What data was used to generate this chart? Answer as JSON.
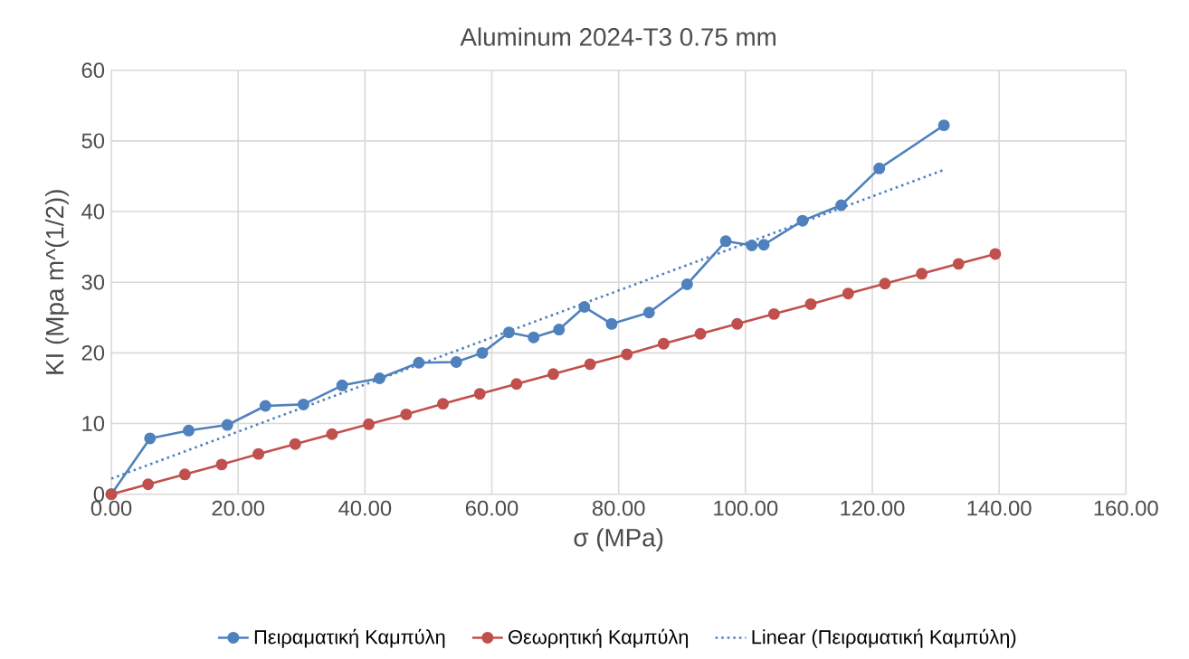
{
  "chart_data": {
    "type": "line",
    "title": "Aluminum 2024-T3 0.75 mm",
    "xlabel": "σ (MPa)",
    "ylabel": "KI (Mpa m^(1/2))",
    "xlim": [
      0,
      160
    ],
    "ylim": [
      0,
      60
    ],
    "xticks": [
      {
        "value": 0,
        "label": "0.00"
      },
      {
        "value": 20,
        "label": "20.00"
      },
      {
        "value": 40,
        "label": "40.00"
      },
      {
        "value": 60,
        "label": "60.00"
      },
      {
        "value": 80,
        "label": "80.00"
      },
      {
        "value": 100,
        "label": "100.00"
      },
      {
        "value": 120,
        "label": "120.00"
      },
      {
        "value": 140,
        "label": "140.00"
      },
      {
        "value": 160,
        "label": "160.00"
      }
    ],
    "yticks": [
      0,
      10,
      20,
      30,
      40,
      50,
      60
    ],
    "grid": true,
    "legend": "bottom",
    "marker": "circle",
    "line_style": "solid",
    "series": [
      {
        "name": "Πειραματική Καμπύλη",
        "color": "#4f81bd",
        "x": [
          0,
          6.1,
          12.2,
          18.3,
          24.3,
          30.3,
          36.4,
          42.3,
          48.5,
          54.4,
          58.5,
          62.7,
          66.6,
          70.6,
          74.6,
          78.9,
          84.8,
          90.8,
          96.9,
          101.0,
          102.9,
          109.0,
          115.1,
          121.1,
          131.3
        ],
        "values": [
          0,
          7.9,
          9.0,
          9.8,
          12.5,
          12.7,
          15.4,
          16.4,
          18.6,
          18.7,
          20.0,
          22.9,
          22.2,
          23.3,
          26.5,
          24.1,
          25.7,
          29.7,
          35.8,
          35.2,
          35.3,
          38.7,
          40.9,
          46.1,
          52.2
        ]
      },
      {
        "name": "Θεωρητική Καμπύλη",
        "color": "#c0504d",
        "x": [
          0,
          5.8,
          11.6,
          17.4,
          23.2,
          29.0,
          34.8,
          40.6,
          46.5,
          52.3,
          58.1,
          63.9,
          69.7,
          75.5,
          81.3,
          87.1,
          92.9,
          98.7,
          104.5,
          110.3,
          116.2,
          122.0,
          127.8,
          133.6,
          139.4
        ],
        "values": [
          0,
          1.4,
          2.8,
          4.2,
          5.7,
          7.1,
          8.5,
          9.9,
          11.3,
          12.8,
          14.2,
          15.6,
          17.0,
          18.4,
          19.8,
          21.3,
          22.7,
          24.1,
          25.5,
          26.9,
          28.4,
          29.8,
          31.2,
          32.6,
          34.0
        ]
      },
      {
        "name": "Linear (Πειραματική Καμπύλη)",
        "color": "#4f81bd",
        "marker": "none",
        "line_style": "dotted",
        "x": [
          0,
          131.3
        ],
        "values": [
          2.2,
          45.9
        ]
      }
    ]
  }
}
